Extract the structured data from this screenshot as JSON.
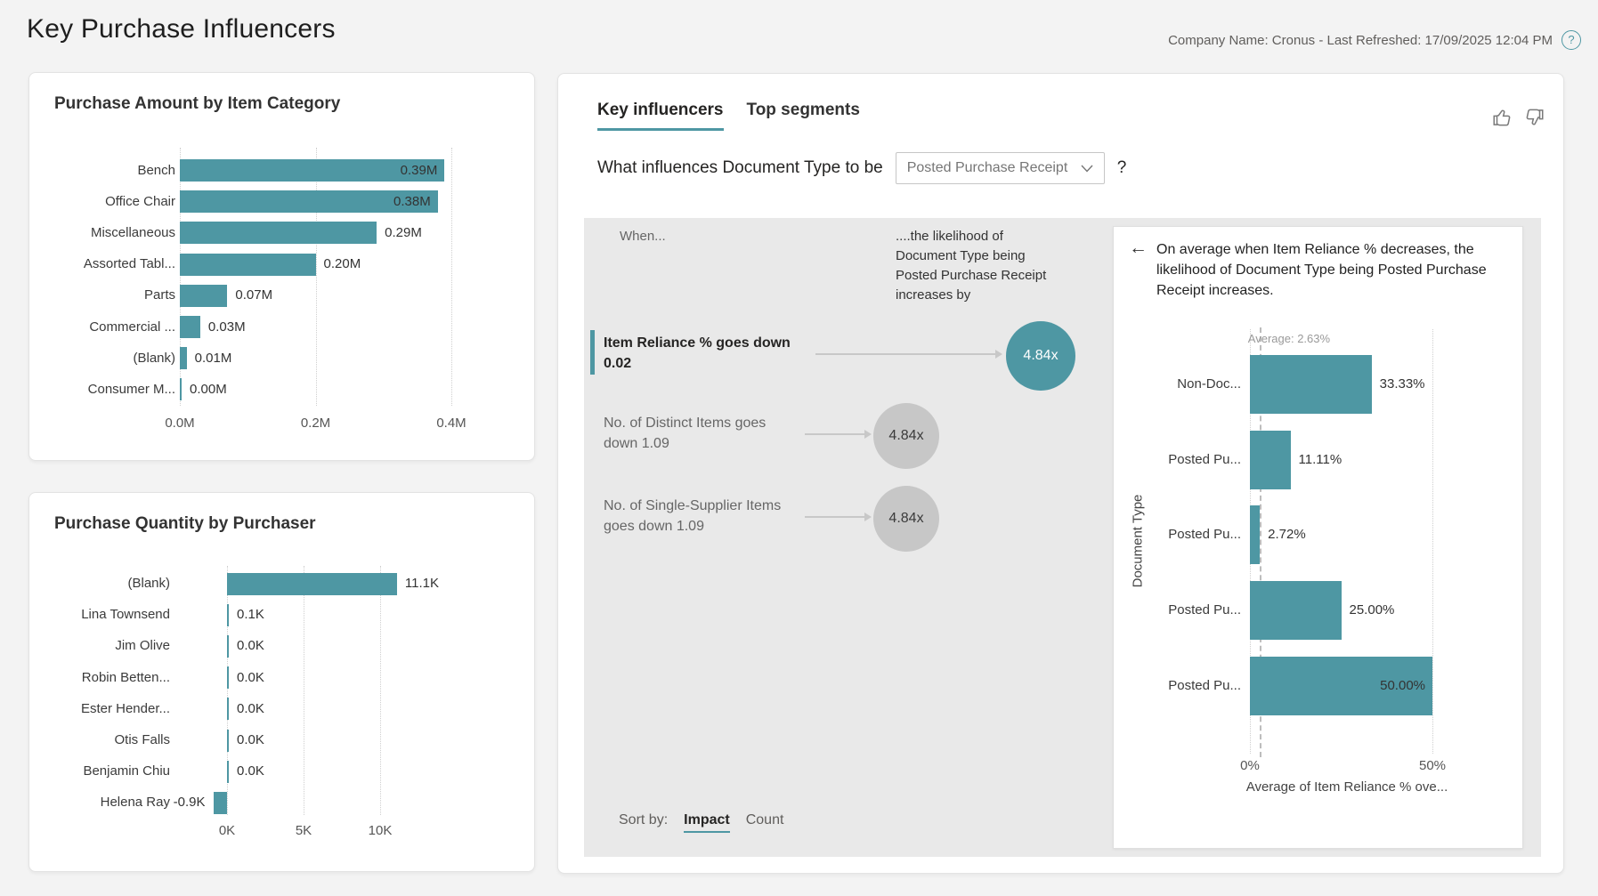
{
  "header": {
    "title": "Key Purchase Influencers",
    "meta": "Company Name: Cronus - Last Refreshed: 17/09/2025 12:04 PM",
    "help_label": "?"
  },
  "colors": {
    "accent_teal": "#4E97A3",
    "panel_gray": "#E9E9E9",
    "circle_gray": "#C7C7C7",
    "page_background": "#F3F3F3"
  },
  "chart_data": [
    {
      "id": "purchase-amount-by-item-category",
      "type": "bar",
      "orientation": "horizontal",
      "title": "Purchase Amount by Item Category",
      "unit": "M",
      "xlim": [
        0,
        0.45
      ],
      "points": [
        {
          "category": "Bench",
          "value": 0.39,
          "label": "0.39M",
          "label_inside": true
        },
        {
          "category": "Office Chair",
          "value": 0.38,
          "label": "0.38M",
          "label_inside": true
        },
        {
          "category": "Miscellaneous",
          "value": 0.29,
          "label": "0.29M",
          "label_inside": false
        },
        {
          "category": "Assorted Tabl...",
          "value": 0.2,
          "label": "0.20M",
          "label_inside": false
        },
        {
          "category": "Parts",
          "value": 0.07,
          "label": "0.07M",
          "label_inside": false
        },
        {
          "category": "Commercial ...",
          "value": 0.03,
          "label": "0.03M",
          "label_inside": false
        },
        {
          "category": "(Blank)",
          "value": 0.01,
          "label": "0.01M",
          "label_inside": false
        },
        {
          "category": "Consumer M...",
          "value": 0.0,
          "label": "0.00M",
          "label_inside": false
        }
      ],
      "x_ticks": [
        {
          "label": "0.0M",
          "value": 0.0
        },
        {
          "label": "0.2M",
          "value": 0.2
        },
        {
          "label": "0.4M",
          "value": 0.4
        }
      ]
    },
    {
      "id": "purchase-quantity-by-purchaser",
      "type": "bar",
      "orientation": "horizontal",
      "title": "Purchase Quantity by Purchaser",
      "unit": "K",
      "xlim": [
        -2,
        13
      ],
      "points": [
        {
          "category": "(Blank)",
          "value": 11.1,
          "label": "11.1K",
          "label_inside": false
        },
        {
          "category": "Lina Townsend",
          "value": 0.1,
          "label": "0.1K",
          "label_inside": false
        },
        {
          "category": "Jim Olive",
          "value": 0.0,
          "label": "0.0K",
          "label_inside": false
        },
        {
          "category": "Robin Betten...",
          "value": 0.0,
          "label": "0.0K",
          "label_inside": false
        },
        {
          "category": "Ester Hender...",
          "value": 0.0,
          "label": "0.0K",
          "label_inside": false
        },
        {
          "category": "Otis Falls",
          "value": 0.0,
          "label": "0.0K",
          "label_inside": false
        },
        {
          "category": "Benjamin Chiu",
          "value": 0.0,
          "label": "0.0K",
          "label_inside": false
        },
        {
          "category": "Helena Ray",
          "value": -0.9,
          "label": "-0.9K",
          "label_inside": false
        }
      ],
      "x_ticks": [
        {
          "label": "0K",
          "value": 0
        },
        {
          "label": "5K",
          "value": 5
        },
        {
          "label": "10K",
          "value": 10
        }
      ]
    },
    {
      "id": "item-reliance-detail",
      "type": "bar",
      "orientation": "horizontal",
      "title": "",
      "unit": "%",
      "xlim": [
        0,
        50
      ],
      "xlabel": "Average of Item Reliance % ove...",
      "ylabel": "Document Type",
      "average_line": {
        "label": "Average: 2.63%",
        "value": 2.63
      },
      "points": [
        {
          "category": "Non-Doc...",
          "value": 33.33,
          "label": "33.33%",
          "label_inside": false
        },
        {
          "category": "Posted Pu...",
          "value": 11.11,
          "label": "11.11%",
          "label_inside": false
        },
        {
          "category": "Posted Pu...",
          "value": 2.72,
          "label": "2.72%",
          "label_inside": false
        },
        {
          "category": "Posted Pu...",
          "value": 25.0,
          "label": "25.00%",
          "label_inside": false
        },
        {
          "category": "Posted Pu...",
          "value": 50.0,
          "label": "50.00%",
          "label_inside": true
        }
      ],
      "x_ticks": [
        {
          "label": "0%",
          "value": 0
        },
        {
          "label": "50%",
          "value": 50
        }
      ]
    }
  ],
  "influencers_card": {
    "tabs": [
      {
        "label": "Key influencers",
        "active": true
      },
      {
        "label": "Top segments",
        "active": false
      }
    ],
    "question": {
      "prefix": "What influences Document Type to be",
      "dropdown_value": "Posted Purchase Receipt",
      "suffix": "?"
    },
    "when_label": "When...",
    "likelihood_text": "....the likelihood of Document Type being Posted Purchase Receipt increases by",
    "influencers": [
      {
        "text": "Item Reliance % goes down 0.02",
        "multiplier": "4.84x",
        "selected": true
      },
      {
        "text": "No. of Distinct Items goes down 1.09",
        "multiplier": "4.84x",
        "selected": false
      },
      {
        "text": "No. of Single-Supplier Items goes down 1.09",
        "multiplier": "4.84x",
        "selected": false
      }
    ],
    "sort_by": {
      "label": "Sort by:",
      "options": [
        {
          "label": "Impact",
          "active": true
        },
        {
          "label": "Count",
          "active": false
        }
      ]
    },
    "detail": {
      "back_arrow": "←",
      "description": "On average when Item Reliance % decreases, the likelihood of Document Type being Posted Purchase Receipt increases."
    }
  }
}
